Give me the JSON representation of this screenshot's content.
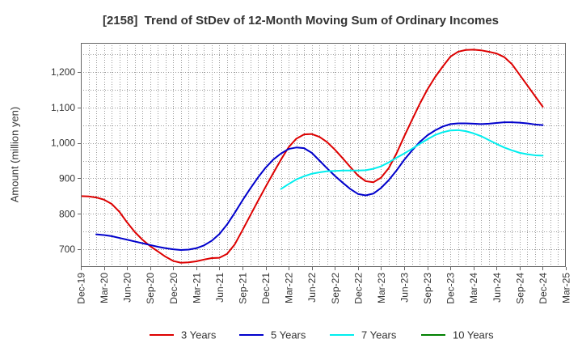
{
  "chart_data": {
    "type": "line",
    "title": "[2158]  Trend of StDev of 12-Month Moving Sum of Ordinary Incomes",
    "ylabel": "Amount (million yen)",
    "x_ticks": [
      "Dec-19",
      "Mar-20",
      "Jun-20",
      "Sep-20",
      "Dec-20",
      "Mar-21",
      "Jun-21",
      "Sep-21",
      "Dec-21",
      "Mar-22",
      "Jun-22",
      "Sep-22",
      "Dec-22",
      "Mar-23",
      "Jun-23",
      "Sep-23",
      "Dec-23",
      "Mar-24",
      "Jun-24",
      "Sep-24",
      "Dec-24",
      "Mar-25"
    ],
    "months_per_x_tick": 3,
    "y_ticks": [
      700,
      800,
      900,
      1000,
      1100,
      1200
    ],
    "y_tick_labels": [
      "700",
      "800",
      "900",
      "1,000",
      "1,100",
      "1,200"
    ],
    "ylim": [
      650,
      1282
    ],
    "grid": true,
    "legend_position": "bottom",
    "series": [
      {
        "name": "3 Years",
        "color": "#dd0000",
        "start_month_offset": 0,
        "values": [
          850,
          849,
          846,
          840,
          828,
          806,
          776,
          749,
          727,
          709,
          694,
          679,
          667,
          662,
          663,
          666,
          671,
          675,
          676,
          687,
          714,
          754,
          795,
          836,
          876,
          915,
          953,
          988,
          1012,
          1024,
          1025,
          1017,
          1002,
          981,
          957,
          932,
          908,
          892,
          889,
          902,
          929,
          970,
          1018,
          1064,
          1109,
          1150,
          1185,
          1215,
          1243,
          1257,
          1262,
          1263,
          1261,
          1257,
          1252,
          1242,
          1222,
          1192,
          1162,
          1132,
          1102
        ]
      },
      {
        "name": "5 Years",
        "color": "#0000cc",
        "start_month_offset": 2,
        "values": [
          742,
          740,
          737,
          732,
          727,
          722,
          717,
          712,
          707,
          703,
          700,
          698,
          699,
          703,
          711,
          724,
          743,
          770,
          803,
          838,
          871,
          902,
          930,
          953,
          970,
          983,
          987,
          985,
          972,
          950,
          928,
          907,
          888,
          870,
          856,
          852,
          857,
          873,
          895,
          922,
          952,
          978,
          1002,
          1021,
          1035,
          1046,
          1053,
          1055,
          1055,
          1054,
          1053,
          1054,
          1056,
          1058,
          1058,
          1057,
          1055,
          1052,
          1050
        ]
      },
      {
        "name": "7 Years",
        "color": "#00eeee",
        "start_month_offset": 26,
        "values": [
          870,
          884,
          897,
          906,
          913,
          917,
          920,
          921,
          922,
          922,
          922,
          923,
          927,
          934,
          945,
          958,
          970,
          983,
          997,
          1010,
          1022,
          1030,
          1035,
          1036,
          1033,
          1027,
          1019,
          1008,
          997,
          987,
          979,
          972,
          968,
          965,
          964
        ]
      },
      {
        "name": "10 Years",
        "color": "#008000",
        "start_month_offset": null,
        "values": []
      }
    ]
  }
}
